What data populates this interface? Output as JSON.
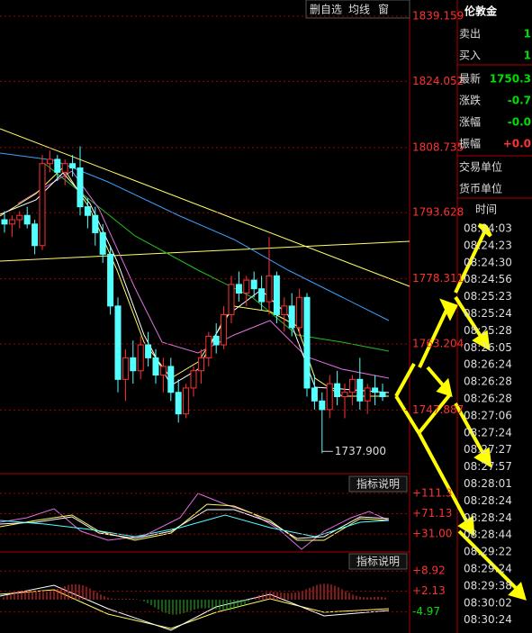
{
  "toolbar": [
    "删自选",
    "均线",
    "窗"
  ],
  "price_chart": {
    "type": "candlestick",
    "ylim": [
      1733.16,
      1842.92
    ],
    "yticks": [
      1839.159,
      1824.052,
      1808.735,
      1793.628,
      1778.311,
      1763.204,
      1747.887
    ],
    "low_annotation": "1737.900",
    "up_color": "#ff3232",
    "down_color": "#54ffff",
    "candles": [
      [
        1792,
        1794,
        1789,
        1791
      ],
      [
        1791,
        1793,
        1788,
        1792
      ],
      [
        1792,
        1794,
        1790,
        1793
      ],
      [
        1793,
        1795,
        1790,
        1791
      ],
      [
        1791,
        1792,
        1784,
        1786
      ],
      [
        1786,
        1807,
        1785,
        1805
      ],
      [
        1805,
        1808,
        1803,
        1806
      ],
      [
        1806,
        1807,
        1801,
        1803
      ],
      [
        1803,
        1806,
        1800,
        1805
      ],
      [
        1805,
        1807,
        1802,
        1804
      ],
      [
        1804,
        1809,
        1793,
        1795
      ],
      [
        1795,
        1797,
        1790,
        1793
      ],
      [
        1793,
        1795,
        1786,
        1789
      ],
      [
        1789,
        1791,
        1782,
        1784
      ],
      [
        1784,
        1786,
        1770,
        1772
      ],
      [
        1772,
        1774,
        1752,
        1755
      ],
      [
        1755,
        1762,
        1750,
        1760
      ],
      [
        1760,
        1764,
        1754,
        1757
      ],
      [
        1757,
        1765,
        1755,
        1763
      ],
      [
        1763,
        1766,
        1758,
        1760
      ],
      [
        1760,
        1762,
        1754,
        1756
      ],
      [
        1756,
        1760,
        1752,
        1758
      ],
      [
        1758,
        1760,
        1750,
        1752
      ],
      [
        1752,
        1755,
        1745,
        1747
      ],
      [
        1747,
        1754,
        1746,
        1753
      ],
      [
        1753,
        1758,
        1751,
        1757
      ],
      [
        1757,
        1762,
        1754,
        1760
      ],
      [
        1760,
        1766,
        1758,
        1765
      ],
      [
        1765,
        1768,
        1761,
        1763
      ],
      [
        1763,
        1772,
        1762,
        1770
      ],
      [
        1770,
        1779,
        1768,
        1777
      ],
      [
        1777,
        1780,
        1773,
        1775
      ],
      [
        1775,
        1779,
        1772,
        1778
      ],
      [
        1778,
        1780,
        1774,
        1776
      ],
      [
        1776,
        1779,
        1771,
        1773
      ],
      [
        1773,
        1788,
        1770,
        1779
      ],
      [
        1779,
        1780,
        1768,
        1770
      ],
      [
        1770,
        1774,
        1766,
        1772
      ],
      [
        1772,
        1775,
        1765,
        1767
      ],
      [
        1767,
        1776,
        1765,
        1774
      ],
      [
        1774,
        1775,
        1751,
        1753
      ],
      [
        1753,
        1756,
        1748,
        1750
      ],
      [
        1750,
        1752,
        1737.9,
        1748
      ],
      [
        1748,
        1756,
        1746,
        1754
      ],
      [
        1754,
        1757,
        1749,
        1751
      ],
      [
        1751,
        1754,
        1746,
        1752
      ],
      [
        1752,
        1756,
        1749,
        1755
      ],
      [
        1755,
        1760,
        1748,
        1750
      ],
      [
        1750,
        1754,
        1747,
        1753
      ],
      [
        1753,
        1756,
        1749,
        1752
      ],
      [
        1752,
        1754,
        1750,
        1751
      ]
    ]
  },
  "indicators": [
    {
      "button": "指标说明",
      "ylim": [
        -2.6,
        146.6
      ],
      "yticks": [
        {
          "value": 111.3,
          "label": "+111.3"
        },
        {
          "value": 71.13,
          "label": "+71.13"
        },
        {
          "value": 31.0,
          "label": "+31.00"
        }
      ]
    },
    {
      "button": "指标说明",
      "ylim": [
        -12.1,
        15.1
      ],
      "yticks": [
        {
          "value": 8.92,
          "label": "+8.92"
        },
        {
          "value": 2.13,
          "label": "+2.13"
        },
        -4.97
      ]
    }
  ],
  "quote": {
    "title": "伦敦金",
    "rows": [
      {
        "label": "卖出",
        "value": "1",
        "color": "#00e000"
      },
      {
        "label": "买入",
        "value": "1",
        "color": "#00e000"
      },
      {
        "label": "最新",
        "value": "1750.3",
        "color": "#00e000"
      },
      {
        "label": "涨跌",
        "value": "-0.7",
        "color": "#00e000"
      },
      {
        "label": "涨幅",
        "value": "-0.0",
        "color": "#00e000"
      },
      {
        "label": "振幅",
        "value": "+0.0",
        "color": "#ff3232"
      }
    ],
    "info_rows": [
      "交易单位",
      "货币单位"
    ],
    "time_header": "时间",
    "times": [
      "08:24:03",
      "08:24:23",
      "08:24:30",
      "08:24:56",
      "08:25:23",
      "08:25:24",
      "08:25:28",
      "08:26:05",
      "08:26:24",
      "08:26:28",
      "08:26:28",
      "08:27:06",
      "08:27:24",
      "08:27:27",
      "08:27:57",
      "08:28:01",
      "08:28:24",
      "08:28:24",
      "08:28:44",
      "08:29:22",
      "08:29:24",
      "08:29:38",
      "08:30:02",
      "08:30:24"
    ]
  }
}
